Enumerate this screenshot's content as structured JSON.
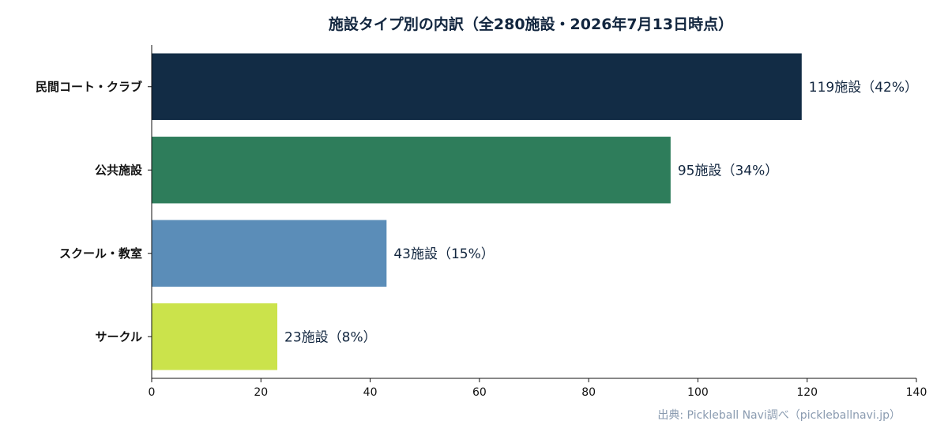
{
  "chart_data": {
    "type": "bar",
    "orientation": "horizontal",
    "title": "施設タイプ別の内訳（全280施設・2026年7月13日時点）",
    "categories": [
      "民間コート・クラブ",
      "公共施設",
      "スクール・教室",
      "サークル"
    ],
    "values": [
      119,
      95,
      43,
      23
    ],
    "value_labels": [
      "119施設（42%）",
      "95施設（34%）",
      "43施設（15%）",
      "23施設（8%）"
    ],
    "colors": [
      "#122c45",
      "#2e7d5b",
      "#5b8db8",
      "#cbe34b"
    ],
    "xlim": [
      0,
      140
    ],
    "xticks": [
      0,
      20,
      40,
      60,
      80,
      100,
      120,
      140
    ],
    "grid": false,
    "source": "出典: Pickleball Navi調べ（pickleballnavi.jp）"
  }
}
